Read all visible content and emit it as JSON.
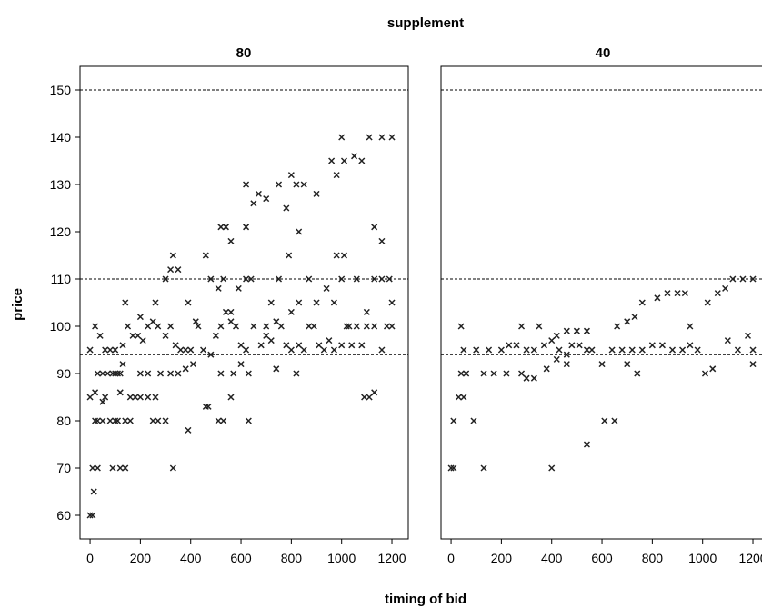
{
  "chart_data": {
    "type": "scatter",
    "facet_title": "supplement",
    "xlabel": "timing of bid",
    "ylabel": "price",
    "xlim": [
      -40,
      1265
    ],
    "ylim": [
      55,
      155
    ],
    "x_ticks": [
      0,
      200,
      400,
      600,
      800,
      1000,
      1200
    ],
    "y_ticks": [
      60,
      70,
      80,
      90,
      100,
      110,
      120,
      130,
      140,
      150
    ],
    "reference_lines": [
      150,
      110,
      94
    ],
    "marker": "x",
    "panels": [
      {
        "label": "80",
        "points": [
          [
            0,
            60
          ],
          [
            10,
            60
          ],
          [
            15,
            65
          ],
          [
            10,
            70
          ],
          [
            30,
            70
          ],
          [
            90,
            70
          ],
          [
            120,
            70
          ],
          [
            140,
            70
          ],
          [
            330,
            70
          ],
          [
            390,
            78
          ],
          [
            20,
            80
          ],
          [
            30,
            80
          ],
          [
            50,
            80
          ],
          [
            80,
            80
          ],
          [
            100,
            80
          ],
          [
            110,
            80
          ],
          [
            140,
            80
          ],
          [
            160,
            80
          ],
          [
            250,
            80
          ],
          [
            270,
            80
          ],
          [
            300,
            80
          ],
          [
            510,
            80
          ],
          [
            530,
            80
          ],
          [
            630,
            80
          ],
          [
            0,
            85
          ],
          [
            20,
            86
          ],
          [
            50,
            84
          ],
          [
            60,
            85
          ],
          [
            120,
            86
          ],
          [
            160,
            85
          ],
          [
            180,
            85
          ],
          [
            200,
            85
          ],
          [
            230,
            85
          ],
          [
            260,
            85
          ],
          [
            560,
            85
          ],
          [
            30,
            90
          ],
          [
            50,
            90
          ],
          [
            70,
            90
          ],
          [
            90,
            90
          ],
          [
            100,
            90
          ],
          [
            110,
            90
          ],
          [
            120,
            90
          ],
          [
            130,
            92
          ],
          [
            200,
            90
          ],
          [
            230,
            90
          ],
          [
            280,
            90
          ],
          [
            320,
            90
          ],
          [
            350,
            90
          ],
          [
            380,
            91
          ],
          [
            410,
            92
          ],
          [
            460,
            83
          ],
          [
            470,
            83
          ],
          [
            520,
            90
          ],
          [
            570,
            90
          ],
          [
            600,
            92
          ],
          [
            630,
            90
          ],
          [
            740,
            91
          ],
          [
            820,
            90
          ],
          [
            1090,
            85
          ],
          [
            1110,
            85
          ],
          [
            1130,
            86
          ],
          [
            0,
            95
          ],
          [
            20,
            100
          ],
          [
            40,
            98
          ],
          [
            60,
            95
          ],
          [
            80,
            95
          ],
          [
            100,
            95
          ],
          [
            130,
            96
          ],
          [
            150,
            100
          ],
          [
            170,
            98
          ],
          [
            190,
            98
          ],
          [
            210,
            97
          ],
          [
            230,
            100
          ],
          [
            250,
            101
          ],
          [
            270,
            100
          ],
          [
            300,
            98
          ],
          [
            320,
            100
          ],
          [
            340,
            96
          ],
          [
            360,
            95
          ],
          [
            380,
            95
          ],
          [
            400,
            95
          ],
          [
            420,
            101
          ],
          [
            450,
            95
          ],
          [
            480,
            94
          ],
          [
            500,
            98
          ],
          [
            520,
            100
          ],
          [
            540,
            103
          ],
          [
            560,
            101
          ],
          [
            580,
            100
          ],
          [
            600,
            96
          ],
          [
            620,
            95
          ],
          [
            650,
            100
          ],
          [
            680,
            96
          ],
          [
            700,
            98
          ],
          [
            720,
            97
          ],
          [
            740,
            101
          ],
          [
            760,
            100
          ],
          [
            780,
            96
          ],
          [
            800,
            95
          ],
          [
            830,
            96
          ],
          [
            850,
            95
          ],
          [
            870,
            100
          ],
          [
            890,
            100
          ],
          [
            910,
            96
          ],
          [
            930,
            95
          ],
          [
            950,
            97
          ],
          [
            970,
            95
          ],
          [
            1000,
            96
          ],
          [
            1020,
            100
          ],
          [
            1040,
            96
          ],
          [
            1060,
            100
          ],
          [
            1080,
            96
          ],
          [
            1100,
            100
          ],
          [
            1130,
            100
          ],
          [
            1160,
            95
          ],
          [
            1180,
            100
          ],
          [
            1200,
            100
          ],
          [
            140,
            105
          ],
          [
            200,
            102
          ],
          [
            260,
            105
          ],
          [
            300,
            110
          ],
          [
            320,
            112
          ],
          [
            350,
            112
          ],
          [
            390,
            105
          ],
          [
            430,
            100
          ],
          [
            480,
            110
          ],
          [
            510,
            108
          ],
          [
            530,
            110
          ],
          [
            560,
            103
          ],
          [
            590,
            108
          ],
          [
            620,
            110
          ],
          [
            640,
            110
          ],
          [
            700,
            100
          ],
          [
            720,
            105
          ],
          [
            750,
            110
          ],
          [
            800,
            103
          ],
          [
            830,
            105
          ],
          [
            870,
            110
          ],
          [
            900,
            105
          ],
          [
            940,
            108
          ],
          [
            970,
            105
          ],
          [
            1000,
            110
          ],
          [
            1030,
            100
          ],
          [
            1060,
            110
          ],
          [
            1100,
            103
          ],
          [
            1130,
            110
          ],
          [
            1160,
            110
          ],
          [
            1190,
            110
          ],
          [
            1200,
            105
          ],
          [
            330,
            115
          ],
          [
            460,
            115
          ],
          [
            520,
            121
          ],
          [
            540,
            121
          ],
          [
            560,
            118
          ],
          [
            620,
            121
          ],
          [
            790,
            115
          ],
          [
            830,
            120
          ],
          [
            980,
            115
          ],
          [
            1010,
            115
          ],
          [
            1130,
            121
          ],
          [
            1160,
            118
          ],
          [
            620,
            130
          ],
          [
            650,
            126
          ],
          [
            670,
            128
          ],
          [
            700,
            127
          ],
          [
            750,
            130
          ],
          [
            780,
            125
          ],
          [
            800,
            132
          ],
          [
            820,
            130
          ],
          [
            850,
            130
          ],
          [
            900,
            128
          ],
          [
            960,
            135
          ],
          [
            980,
            132
          ],
          [
            1010,
            135
          ],
          [
            1050,
            136
          ],
          [
            1080,
            135
          ],
          [
            1000,
            140
          ],
          [
            1110,
            140
          ],
          [
            1160,
            140
          ],
          [
            1200,
            140
          ]
        ]
      },
      {
        "label": "40",
        "points": [
          [
            0,
            70
          ],
          [
            10,
            70
          ],
          [
            130,
            70
          ],
          [
            400,
            70
          ],
          [
            540,
            75
          ],
          [
            610,
            80
          ],
          [
            650,
            80
          ],
          [
            10,
            80
          ],
          [
            90,
            80
          ],
          [
            30,
            85
          ],
          [
            50,
            85
          ],
          [
            40,
            90
          ],
          [
            60,
            90
          ],
          [
            130,
            90
          ],
          [
            170,
            90
          ],
          [
            220,
            90
          ],
          [
            280,
            90
          ],
          [
            300,
            89
          ],
          [
            330,
            89
          ],
          [
            380,
            91
          ],
          [
            420,
            93
          ],
          [
            460,
            92
          ],
          [
            700,
            92
          ],
          [
            740,
            90
          ],
          [
            1010,
            90
          ],
          [
            1040,
            91
          ],
          [
            1200,
            92
          ],
          [
            50,
            95
          ],
          [
            100,
            95
          ],
          [
            150,
            95
          ],
          [
            200,
            95
          ],
          [
            230,
            96
          ],
          [
            260,
            96
          ],
          [
            300,
            95
          ],
          [
            330,
            95
          ],
          [
            370,
            96
          ],
          [
            400,
            97
          ],
          [
            430,
            95
          ],
          [
            460,
            94
          ],
          [
            480,
            96
          ],
          [
            510,
            96
          ],
          [
            540,
            95
          ],
          [
            560,
            95
          ],
          [
            600,
            92
          ],
          [
            640,
            95
          ],
          [
            680,
            95
          ],
          [
            720,
            95
          ],
          [
            760,
            95
          ],
          [
            800,
            96
          ],
          [
            840,
            96
          ],
          [
            880,
            95
          ],
          [
            920,
            95
          ],
          [
            950,
            96
          ],
          [
            980,
            95
          ],
          [
            1100,
            97
          ],
          [
            1140,
            95
          ],
          [
            1180,
            98
          ],
          [
            1200,
            95
          ],
          [
            40,
            100
          ],
          [
            280,
            100
          ],
          [
            350,
            100
          ],
          [
            420,
            98
          ],
          [
            460,
            99
          ],
          [
            500,
            99
          ],
          [
            540,
            99
          ],
          [
            660,
            100
          ],
          [
            700,
            101
          ],
          [
            730,
            102
          ],
          [
            760,
            105
          ],
          [
            820,
            106
          ],
          [
            860,
            107
          ],
          [
            900,
            107
          ],
          [
            930,
            107
          ],
          [
            950,
            100
          ],
          [
            1020,
            105
          ],
          [
            1060,
            107
          ],
          [
            1090,
            108
          ],
          [
            1120,
            110
          ],
          [
            1160,
            110
          ],
          [
            1200,
            110
          ]
        ]
      }
    ]
  }
}
